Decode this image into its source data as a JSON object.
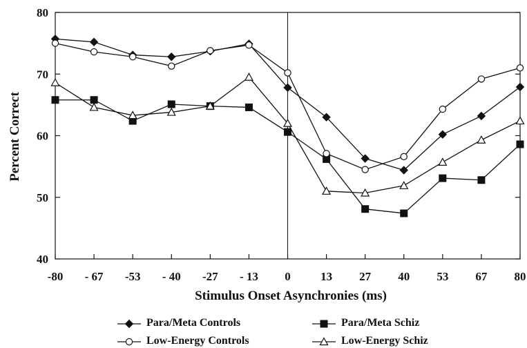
{
  "chart_data": {
    "type": "line",
    "xlabel": "Stimulus Onset Asynchronies (ms)",
    "ylabel": "Percent Correct",
    "ylim": [
      40,
      80
    ],
    "yticks": [
      40,
      50,
      60,
      70,
      80
    ],
    "categories": [
      "-80",
      "- 67",
      "-53",
      "- 40",
      "-27",
      "- 13",
      "0",
      "13",
      "27",
      "40",
      "53",
      "67",
      "80"
    ],
    "vertical_reference_at": "0",
    "grid": false,
    "legend_position": "bottom",
    "series": [
      {
        "name": "Para/Meta Controls",
        "marker": "diamond-filled",
        "values": [
          75.7,
          75.2,
          73.1,
          72.8,
          73.7,
          74.9,
          67.8,
          63.0,
          56.3,
          54.4,
          60.2,
          63.2,
          67.9
        ]
      },
      {
        "name": "Para/Meta Schiz",
        "marker": "square-filled",
        "values": [
          65.8,
          65.8,
          62.4,
          65.1,
          64.8,
          64.6,
          60.6,
          56.2,
          48.1,
          47.4,
          53.1,
          52.8,
          58.6
        ]
      },
      {
        "name": "Low-Energy Controls",
        "marker": "circle-open",
        "values": [
          75.0,
          73.6,
          72.8,
          71.3,
          73.8,
          74.7,
          70.2,
          57.1,
          54.5,
          56.6,
          64.3,
          69.2,
          71.0
        ]
      },
      {
        "name": "Low-Energy Schiz",
        "marker": "triangle-open",
        "values": [
          68.6,
          64.6,
          63.3,
          63.8,
          64.8,
          69.5,
          62.0,
          51.0,
          50.7,
          51.9,
          55.7,
          59.3,
          62.4
        ]
      }
    ]
  }
}
